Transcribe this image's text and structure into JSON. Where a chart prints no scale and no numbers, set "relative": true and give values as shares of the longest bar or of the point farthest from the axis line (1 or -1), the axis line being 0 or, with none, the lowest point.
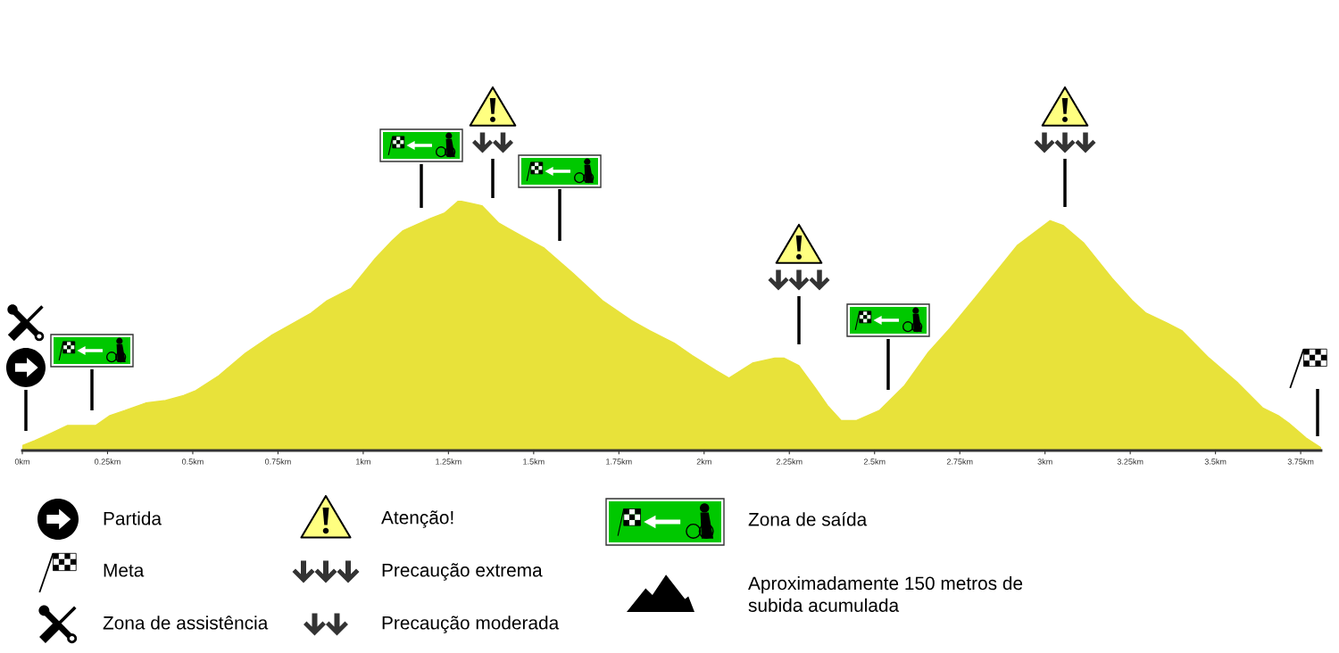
{
  "chart_data": {
    "type": "area",
    "relative": true,
    "color": "#e8e23a",
    "x": [
      0,
      0.037,
      0.086,
      0.133,
      0.174,
      0.215,
      0.257,
      0.301,
      0.362,
      0.42,
      0.473,
      0.509,
      0.577,
      0.655,
      0.73,
      0.769,
      0.847,
      0.894,
      0.965,
      1.036,
      1.085,
      1.117,
      1.199,
      1.238,
      1.28,
      1.313,
      1.348,
      1.398,
      1.463,
      1.531,
      1.615,
      1.702,
      1.787,
      1.84,
      1.912,
      1.965,
      2.035,
      2.073,
      2.142,
      2.207,
      2.234,
      2.278,
      2.326,
      2.362,
      2.402,
      2.447,
      2.514,
      2.588,
      2.656,
      2.722,
      2.8,
      2.859,
      2.918,
      2.976,
      3.015,
      3.054,
      3.114,
      3.196,
      3.256,
      3.296,
      3.358,
      3.401,
      3.481,
      3.566,
      3.639,
      3.684,
      3.715,
      3.766,
      3.81
    ],
    "values": [
      0.02,
      0.04,
      0.07,
      0.1,
      0.1,
      0.1,
      0.14,
      0.16,
      0.19,
      0.2,
      0.22,
      0.24,
      0.3,
      0.39,
      0.46,
      0.49,
      0.55,
      0.6,
      0.65,
      0.77,
      0.84,
      0.88,
      0.93,
      0.95,
      1.0,
      0.99,
      0.98,
      0.91,
      0.86,
      0.81,
      0.71,
      0.6,
      0.52,
      0.48,
      0.43,
      0.38,
      0.32,
      0.29,
      0.35,
      0.37,
      0.37,
      0.34,
      0.25,
      0.18,
      0.12,
      0.12,
      0.16,
      0.26,
      0.39,
      0.49,
      0.62,
      0.72,
      0.82,
      0.88,
      0.92,
      0.9,
      0.83,
      0.69,
      0.6,
      0.55,
      0.51,
      0.48,
      0.37,
      0.27,
      0.17,
      0.14,
      0.11,
      0.05,
      0.01
    ],
    "xlim": [
      0,
      3.81
    ],
    "xticks": [
      {
        "value": 0,
        "label": "0km"
      },
      {
        "value": 0.25,
        "label": "0.25km"
      },
      {
        "value": 0.5,
        "label": "0.5km"
      },
      {
        "value": 0.75,
        "label": "0.75km"
      },
      {
        "value": 1,
        "label": "1km"
      },
      {
        "value": 1.25,
        "label": "1.25km"
      },
      {
        "value": 1.5,
        "label": "1.5km"
      },
      {
        "value": 1.75,
        "label": "1.75km"
      },
      {
        "value": 2,
        "label": "2km"
      },
      {
        "value": 2.25,
        "label": "2.25km"
      },
      {
        "value": 2.5,
        "label": "2.5km"
      },
      {
        "value": 2.75,
        "label": "2.75km"
      },
      {
        "value": 3,
        "label": "3km"
      },
      {
        "value": 3.25,
        "label": "3.25km"
      },
      {
        "value": 3.5,
        "label": "3.5km"
      },
      {
        "value": 3.75,
        "label": "3.75km"
      }
    ],
    "annotations": [
      "Partida",
      "Meta",
      "Zona de assistência",
      "Atenção!",
      "Precaução extrema",
      "Precaução moderada",
      "Zona de saída",
      "Aproximadamente 150 metros de\nsubida acumulada"
    ]
  }
}
